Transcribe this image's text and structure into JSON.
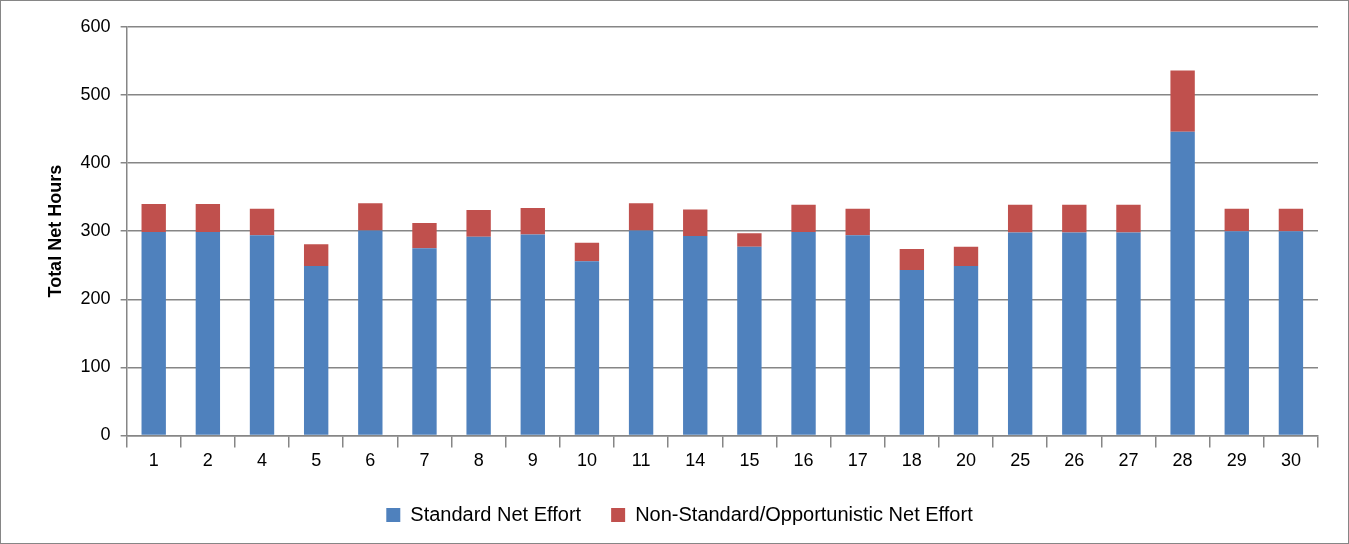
{
  "chart_data": {
    "type": "bar",
    "stacked": true,
    "ylabel": "Total Net Hours",
    "categories": [
      "1",
      "2",
      "4",
      "5",
      "6",
      "7",
      "8",
      "9",
      "10",
      "11",
      "14",
      "15",
      "16",
      "17",
      "18",
      "20",
      "25",
      "26",
      "27",
      "28",
      "29",
      "30"
    ],
    "series": [
      {
        "name": "Standard Net Effort",
        "color": "#4f81bd",
        "values": [
          299,
          299,
          294,
          249,
          301,
          275,
          292,
          295,
          256,
          301,
          293,
          277,
          299,
          294,
          243,
          249,
          298,
          298,
          298,
          446,
          300,
          300
        ]
      },
      {
        "name": "Non-Standard/Opportunistic Net Effort",
        "color": "#c0504d",
        "values": [
          41,
          41,
          39,
          32,
          40,
          37,
          39,
          39,
          27,
          40,
          39,
          20,
          40,
          39,
          31,
          28,
          41,
          41,
          41,
          90,
          33,
          33
        ]
      }
    ],
    "ylim": [
      0,
      600
    ],
    "yticks": [
      0,
      100,
      200,
      300,
      400,
      500,
      600
    ],
    "grid": "y",
    "legend": "bottom"
  }
}
